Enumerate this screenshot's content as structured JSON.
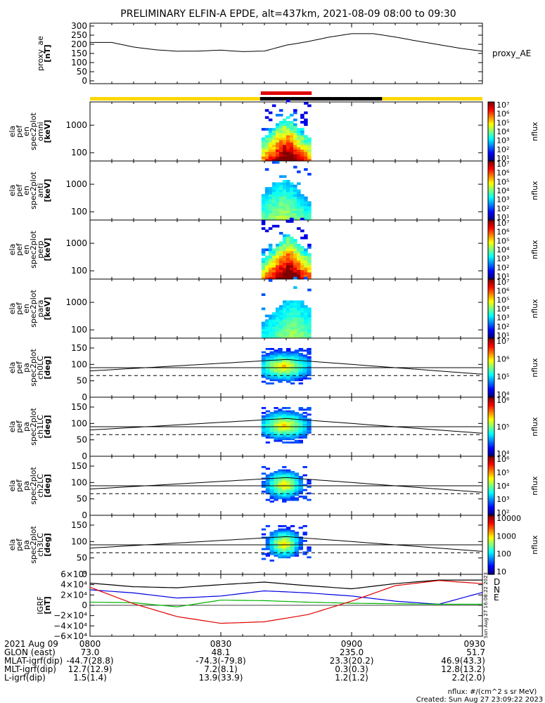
{
  "title": "PRELIMINARY ELFIN-A EPDE, alt=437km, 2021-08-09 08:00 to 09:30",
  "colors": {
    "ephem_day": "#ffd700",
    "ephem_night": "#000000",
    "science_zone": "#e00000",
    "e_component": "#00b400",
    "n_component": "#0000e0",
    "d_component": "#e00000"
  },
  "panels": [
    {
      "id": "proxy_ae",
      "ylabel_lines": [
        "proxy_ae",
        "[nT]"
      ],
      "right_label": "proxy_AE",
      "yticks": [
        "300",
        "250",
        "200",
        "150",
        "100",
        "50",
        "0"
      ]
    },
    {
      "id": "omni",
      "ylabel_lines": [
        "ela",
        "pef",
        "en",
        "spec2plot",
        "omni",
        "[keV]"
      ],
      "yticks": [
        "1000",
        "100"
      ],
      "cb_ticks": [
        "10⁷",
        "10⁶",
        "10⁵",
        "10⁴",
        "10³",
        "10²",
        "10¹"
      ],
      "cb_label": "nflux"
    },
    {
      "id": "anti",
      "ylabel_lines": [
        "ela",
        "pef",
        "en",
        "spec2plot",
        "anti",
        "[keV]"
      ],
      "yticks": [
        "1000",
        "100"
      ],
      "cb_ticks": [
        "10⁷",
        "10⁶",
        "10⁵",
        "10⁴",
        "10³",
        "10²",
        "10¹"
      ],
      "cb_label": "nflux"
    },
    {
      "id": "perp",
      "ylabel_lines": [
        "ela",
        "pef",
        "en",
        "spec2plot",
        "perp",
        "[keV]"
      ],
      "yticks": [
        "1000",
        "100"
      ],
      "cb_ticks": [
        "10⁷",
        "10⁶",
        "10⁵",
        "10⁴",
        "10³",
        "10²",
        "10¹"
      ],
      "cb_label": "nflux"
    },
    {
      "id": "para",
      "ylabel_lines": [
        "ela",
        "pef",
        "en",
        "spec2plot",
        "para",
        "[keV]"
      ],
      "yticks": [
        "1000",
        "100"
      ],
      "cb_ticks": [
        "10⁷",
        "10⁶",
        "10⁵",
        "10⁴",
        "10³",
        "10²",
        "10¹"
      ],
      "cb_label": "nflux"
    },
    {
      "id": "ch0LC",
      "ylabel_lines": [
        "ela",
        "pef",
        "pa",
        "spec2plot",
        "ch0LC",
        "[deg]"
      ],
      "yticks": [
        "150",
        "100",
        "50",
        "0"
      ],
      "cb_ticks": [
        "10⁷",
        "10⁶",
        "10⁵",
        "10⁴"
      ],
      "cb_label": "nflux"
    },
    {
      "id": "ch1LC",
      "ylabel_lines": [
        "ela",
        "pef",
        "pa",
        "spec2plot",
        "ch1LC",
        "[deg]"
      ],
      "yticks": [
        "150",
        "100",
        "50",
        "0"
      ],
      "cb_ticks": [
        "10⁶",
        "10⁵",
        "10⁴"
      ],
      "cb_label": "nflux"
    },
    {
      "id": "ch2LC",
      "ylabel_lines": [
        "ela",
        "pef",
        "pa",
        "spec2plot",
        "ch2LC",
        "[deg]"
      ],
      "yticks": [
        "150",
        "100",
        "50",
        "0"
      ],
      "cb_ticks": [
        "10⁶",
        "10⁵",
        "10⁴",
        "10³",
        "10²"
      ],
      "cb_label": "nflux"
    },
    {
      "id": "ch3LC",
      "ylabel_lines": [
        "ela",
        "pef",
        "pa",
        "spec2plot",
        "ch3LC",
        "[deg]"
      ],
      "yticks": [
        "150",
        "100",
        "50",
        "0"
      ],
      "cb_ticks": [
        "10000",
        "1000",
        "100",
        "10"
      ],
      "cb_label": "nflux"
    },
    {
      "id": "igrf",
      "ylabel_lines": [
        "IGRF",
        "[nT]"
      ],
      "yticks": [
        "6×10⁴",
        "4×10⁴",
        "2×10⁴",
        "0",
        "−2×10⁴",
        "−4×10⁴",
        "−6×10⁴"
      ],
      "legend": [
        "D",
        "N",
        "E"
      ],
      "side_stamp": "Sun Aug 27 16:08:22 2023"
    }
  ],
  "chart_data": {
    "type": "line",
    "x_range": [
      "08:00",
      "09:30"
    ],
    "science_window": [
      "08:39",
      "08:51"
    ],
    "night_window": [
      "08:39",
      "09:07"
    ],
    "proxy_ae": {
      "ylim": [
        0,
        300
      ],
      "t": [
        0,
        5,
        10,
        15,
        20,
        25,
        30,
        35,
        40,
        45,
        50,
        55,
        60,
        65,
        70,
        75,
        80,
        85,
        90
      ],
      "values": [
        210,
        210,
        185,
        170,
        162,
        163,
        168,
        160,
        163,
        195,
        215,
        240,
        258,
        258,
        240,
        218,
        198,
        178,
        162
      ]
    },
    "energy_ylim_keV": [
      50,
      7000
    ],
    "lc_angle_deg": 66,
    "pa_trace": {
      "t": [
        0,
        45,
        90
      ],
      "values": [
        80,
        115,
        70
      ]
    },
    "pa_ref_deg": 90,
    "igrf": {
      "ylim": [
        -60000,
        60000
      ],
      "t": [
        0,
        10,
        20,
        30,
        40,
        50,
        60,
        70,
        80,
        90
      ],
      "D": [
        35000,
        3000,
        -22000,
        -35000,
        -32000,
        -18000,
        8000,
        38000,
        48000,
        42000
      ],
      "N": [
        30000,
        24000,
        14000,
        18000,
        28000,
        24000,
        18000,
        8000,
        2000,
        25000
      ],
      "E": [
        6000,
        5000,
        -3000,
        10000,
        9000,
        6000,
        4000,
        3000,
        2000,
        2000
      ],
      "total": [
        43000,
        36000,
        34000,
        40000,
        45000,
        38000,
        32000,
        42000,
        49000,
        49000
      ]
    }
  },
  "orbit_table": {
    "rows": [
      {
        "label": "2021 Aug 09",
        "values": [
          "0800",
          "0830",
          "0900",
          "0930"
        ]
      },
      {
        "label": "GLON (east)",
        "values": [
          "73.0",
          "48.1",
          "235.0",
          "51.7"
        ]
      },
      {
        "label": "MLAT-igrf(dip)",
        "values": [
          "-44.7(28.8)",
          "-74.3(-79.8)",
          "23.3(20.2)",
          "46.9(43.3)"
        ]
      },
      {
        "label": "MLT-igrf(dip)",
        "values": [
          "12.7(12.9)",
          "7.2(8.1)",
          "0.3(0.3)",
          "12.8(13.2)"
        ]
      },
      {
        "label": "L-igrf(dip)",
        "values": [
          "1.5(1.4)",
          "13.9(33.9)",
          "1.2(1.2)",
          "2.2(2.0)"
        ]
      }
    ]
  },
  "footer": {
    "units": "nflux: #/(cm^2 s sr MeV)",
    "created": "Created: Sun Aug 27 23:09:22 2023"
  }
}
